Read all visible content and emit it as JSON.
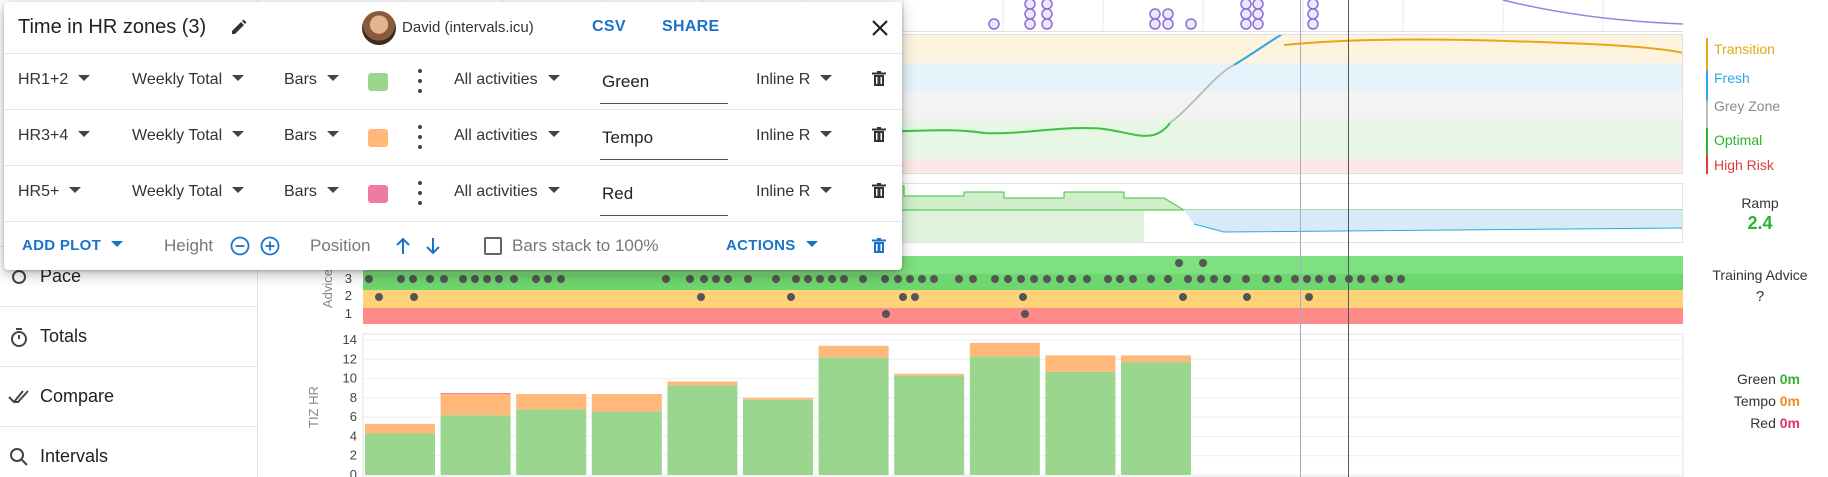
{
  "nav": {
    "items": [
      {
        "label": "Pace",
        "icon": "pace-icon"
      },
      {
        "label": "Totals",
        "icon": "stopwatch-icon"
      },
      {
        "label": "Compare",
        "icon": "check-double-icon"
      },
      {
        "label": "Intervals",
        "icon": "search-icon"
      }
    ]
  },
  "dialog": {
    "title": "Time in HR zones (3)",
    "athlete": "David (intervals.icu)",
    "csv_label": "CSV",
    "share_label": "SHARE",
    "rows": [
      {
        "zone": "HR1+2",
        "aggregate": "Weekly Total",
        "style": "Bars",
        "color": "#9bd68f",
        "filter": "All activities",
        "name": "Green",
        "axis": "Inline R"
      },
      {
        "zone": "HR3+4",
        "aggregate": "Weekly Total",
        "style": "Bars",
        "color": "#ffb87a",
        "filter": "All activities",
        "name": "Tempo",
        "axis": "Inline R"
      },
      {
        "zone": "HR5+",
        "aggregate": "Weekly Total",
        "style": "Bars",
        "color": "#f07ba0",
        "filter": "All activities",
        "name": "Red",
        "axis": "Inline R"
      }
    ],
    "footer": {
      "add_plot": "ADD PLOT",
      "height": "Height",
      "position": "Position",
      "bars_stack": "Bars stack to 100%",
      "actions": "ACTIONS"
    }
  },
  "form_legend": [
    {
      "label": "Transition",
      "color": "#e6a817"
    },
    {
      "label": "Fresh",
      "color": "#2ea8e0"
    },
    {
      "label": "Grey Zone",
      "color": "#8a8a8a"
    },
    {
      "label": "Optimal",
      "color": "#2db32d"
    },
    {
      "label": "High Risk",
      "color": "#e03b3b"
    }
  ],
  "ramp": {
    "label": "Ramp",
    "value": "2.4"
  },
  "advice": {
    "label": "Training Advice",
    "value": "?",
    "axis_label": "Advice",
    "ticks": [
      "3",
      "2",
      "1"
    ]
  },
  "tiz_legend": [
    {
      "label": "Green",
      "value": "0m",
      "color": "#2db32d"
    },
    {
      "label": "Tempo",
      "value": "0m",
      "color": "#f08a1c"
    },
    {
      "label": "Red",
      "value": "0m",
      "color": "#e0306a"
    }
  ],
  "chart_data": {
    "type": "bar",
    "ylabel": "TIZ HR",
    "yticks": [
      "14",
      "12",
      "10",
      "8",
      "6",
      "4",
      "2",
      "0"
    ],
    "ylim": [
      0,
      14
    ],
    "series": [
      {
        "name": "Green",
        "values": [
          4.3,
          6.2,
          6.8,
          6.6,
          9.3,
          7.8,
          12.2,
          10.3,
          12.3,
          10.7,
          11.7
        ]
      },
      {
        "name": "Tempo",
        "values": [
          1.0,
          2.2,
          1.6,
          1.8,
          0.4,
          0.2,
          1.2,
          0.2,
          1.4,
          1.7,
          0.7
        ]
      },
      {
        "name": "Red",
        "values": [
          0,
          0.1,
          0,
          0,
          0,
          0,
          0,
          0,
          0,
          0,
          0
        ]
      }
    ],
    "colors": [
      "#9bd68f",
      "#ffb87a",
      "#f07ba0"
    ]
  }
}
